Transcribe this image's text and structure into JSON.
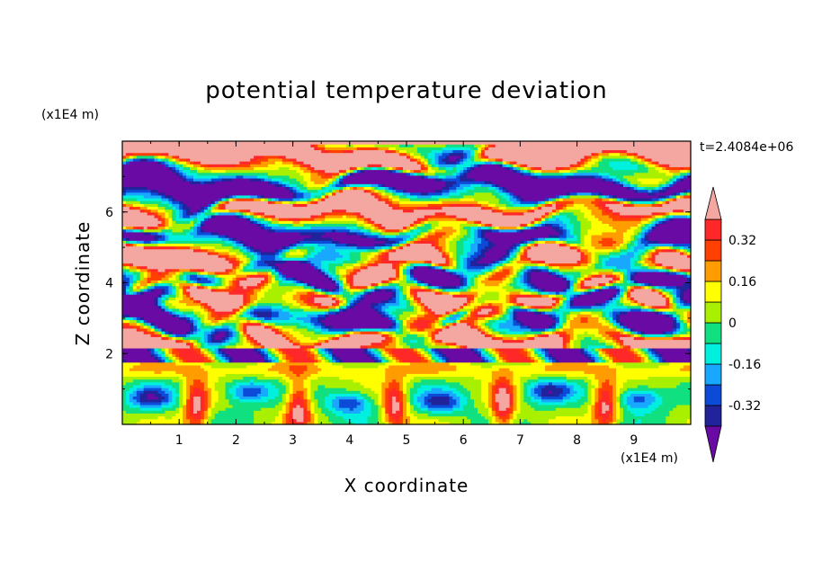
{
  "chart_data": {
    "type": "heatmap",
    "title": "potential temperature deviation",
    "xlabel": "X coordinate",
    "ylabel": "Z coordinate",
    "x_unit": "(x1E4 m)",
    "y_unit": "(x1E4 m)",
    "time_label": "t=2.4084e+06",
    "xlim": [
      0,
      10
    ],
    "ylim": [
      0,
      8
    ],
    "x_ticks": [
      1,
      2,
      3,
      4,
      5,
      6,
      7,
      8,
      9
    ],
    "x_tick_labels": [
      "1",
      "2",
      "3",
      "4",
      "5",
      "6",
      "7",
      "8",
      "9"
    ],
    "y_ticks": [
      2,
      4,
      6
    ],
    "y_tick_labels": [
      "2",
      "4",
      "6"
    ],
    "colorbar": {
      "levels": [
        -0.4,
        -0.32,
        -0.24,
        -0.16,
        -0.08,
        0,
        0.08,
        0.16,
        0.24,
        0.32,
        0.4
      ],
      "labels": [
        "0.32",
        "0.16",
        "0",
        "-0.16",
        "-0.32"
      ],
      "label_values": [
        0.32,
        0.16,
        0,
        -0.16,
        -0.32
      ],
      "colors": [
        "#6a0aa4",
        "#22229a",
        "#0c4ad8",
        "#18a8ff",
        "#00f0e0",
        "#10e080",
        "#a8f000",
        "#ffff00",
        "#ff9c00",
        "#ff4000",
        "#ff2828",
        "#f4a6a0"
      ]
    },
    "pattern": {
      "description_free": false,
      "upper_layer_bands": [
        {
          "z": 7.6,
          "sign": 1
        },
        {
          "z": 6.8,
          "sign": -1
        },
        {
          "z": 6.0,
          "sign": 1
        },
        {
          "z": 5.3,
          "sign": -1
        },
        {
          "z": 4.7,
          "sign": 1
        },
        {
          "z": 4.1,
          "sign": -1
        },
        {
          "z": 3.6,
          "sign": 1
        },
        {
          "z": 3.0,
          "sign": -1
        },
        {
          "z": 2.4,
          "sign": 1
        }
      ],
      "boundary_layer_top": 1.9,
      "plume_x": [
        1.3,
        3.1,
        4.8,
        6.7,
        8.5
      ],
      "cold_core_x": [
        0.5,
        2.2,
        4.0,
        5.6,
        7.5,
        9.1
      ]
    }
  }
}
